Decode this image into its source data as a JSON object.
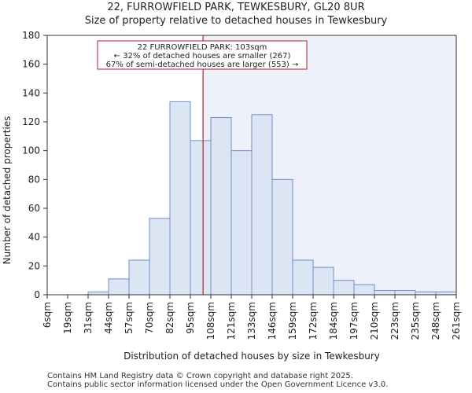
{
  "chart_data": {
    "type": "bar",
    "title": "22, FURROWFIELD PARK, TEWKESBURY, GL20 8UR",
    "subtitle": "Size of property relative to detached houses in Tewkesbury",
    "xlabel": "Distribution of detached houses by size in Tewkesbury",
    "ylabel": "Number of detached properties",
    "bin_edges": [
      "6sqm",
      "19sqm",
      "31sqm",
      "44sqm",
      "57sqm",
      "70sqm",
      "82sqm",
      "95sqm",
      "108sqm",
      "121sqm",
      "133sqm",
      "146sqm",
      "159sqm",
      "172sqm",
      "184sqm",
      "197sqm",
      "210sqm",
      "223sqm",
      "235sqm",
      "248sqm",
      "261sqm"
    ],
    "values": [
      0,
      0,
      2,
      11,
      24,
      53,
      134,
      107,
      123,
      100,
      125,
      80,
      24,
      19,
      10,
      7,
      3,
      3,
      2,
      2
    ],
    "ylim": [
      0,
      180
    ],
    "yticks": [
      0,
      20,
      40,
      60,
      80,
      100,
      120,
      140,
      160,
      180
    ],
    "marker": {
      "value_sqm": 103,
      "bin_position": 7.62
    },
    "annotation": [
      "22 FURROWFIELD PARK: 103sqm",
      "← 32% of detached houses are smaller (267)",
      "67% of semi-detached houses are larger (553) →"
    ],
    "colors": {
      "bar_fill": "#dce5f4",
      "bar_edge": "#6f8fc7",
      "marker": "#b0202a",
      "shade": "#eef1fa"
    }
  },
  "footer": {
    "line1": "Contains HM Land Registry data © Crown copyright and database right 2025.",
    "line2": "Contains public sector information licensed under the Open Government Licence v3.0."
  }
}
